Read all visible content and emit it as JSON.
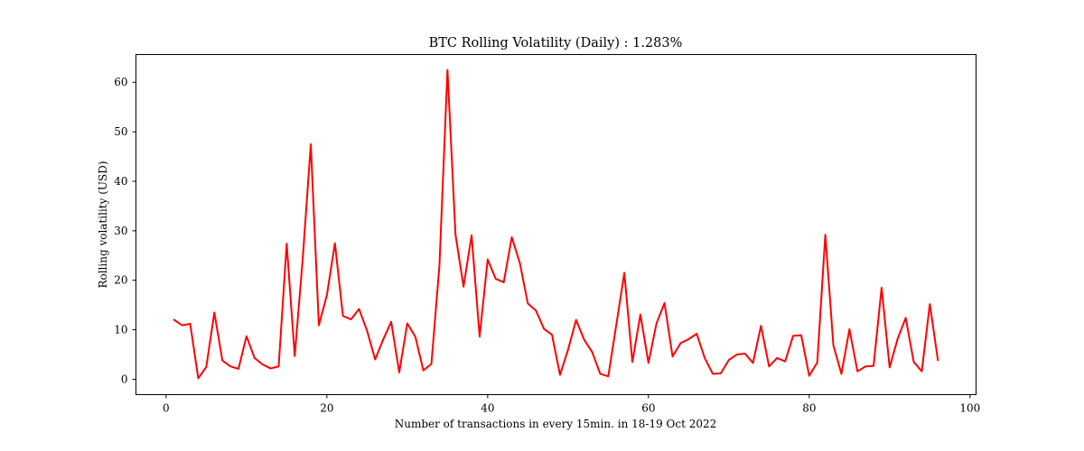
{
  "chart_data": {
    "type": "line",
    "title": "BTC Rolling Volatility (Daily) : 1.283%",
    "xlabel": "Number of transactions in every 15min. in 18-19 Oct 2022",
    "ylabel": "Rolling volatility (USD)",
    "xlim": [
      -3.75,
      100.75
    ],
    "ylim": [
      -3.1,
      65.6
    ],
    "xticks": [
      0,
      20,
      40,
      60,
      80,
      100
    ],
    "yticks": [
      0,
      10,
      20,
      30,
      40,
      50,
      60
    ],
    "grid": false,
    "series": [
      {
        "color": "#ff0000",
        "x": [
          1,
          2,
          3,
          4,
          5,
          6,
          7,
          8,
          9,
          10,
          11,
          12,
          13,
          14,
          15,
          16,
          17,
          18,
          19,
          20,
          21,
          22,
          23,
          24,
          25,
          26,
          27,
          28,
          29,
          30,
          31,
          32,
          33,
          34,
          35,
          36,
          37,
          38,
          39,
          40,
          41,
          42,
          43,
          44,
          45,
          46,
          47,
          48,
          49,
          50,
          51,
          52,
          53,
          54,
          55,
          56,
          57,
          58,
          59,
          60,
          61,
          62,
          63,
          64,
          65,
          66,
          67,
          68,
          69,
          70,
          71,
          72,
          73,
          74,
          75,
          76,
          77,
          78,
          79,
          80,
          81,
          82,
          83,
          84,
          85,
          86,
          87,
          88,
          89,
          90,
          91,
          92,
          93,
          94,
          95,
          96
        ],
        "values": [
          12.0,
          10.9,
          11.2,
          0.2,
          2.5,
          13.5,
          3.8,
          2.6,
          2.1,
          8.7,
          4.3,
          3.0,
          2.2,
          2.6,
          27.4,
          4.7,
          24.5,
          47.5,
          10.9,
          17.0,
          27.5,
          12.8,
          12.1,
          14.2,
          9.8,
          4.0,
          8.0,
          11.6,
          1.4,
          11.3,
          8.6,
          1.8,
          3.1,
          23.0,
          62.5,
          29.2,
          18.7,
          29.1,
          8.6,
          24.2,
          20.3,
          19.6,
          28.7,
          23.5,
          15.3,
          13.9,
          10.2,
          9.0,
          0.9,
          6.0,
          12.0,
          8.0,
          5.5,
          1.1,
          0.6,
          11.0,
          21.5,
          3.5,
          13.1,
          3.3,
          11.3,
          15.4,
          4.6,
          7.3,
          8.1,
          9.2,
          4.3,
          1.1,
          1.2,
          3.9,
          5.0,
          5.2,
          3.3,
          10.8,
          2.6,
          4.3,
          3.6,
          8.8,
          8.9,
          0.7,
          3.4,
          29.2,
          6.9,
          1.1,
          10.1,
          1.6,
          2.6,
          2.7,
          18.5,
          2.4,
          8.2,
          12.4,
          3.5,
          1.6,
          15.2,
          3.9
        ]
      }
    ]
  }
}
